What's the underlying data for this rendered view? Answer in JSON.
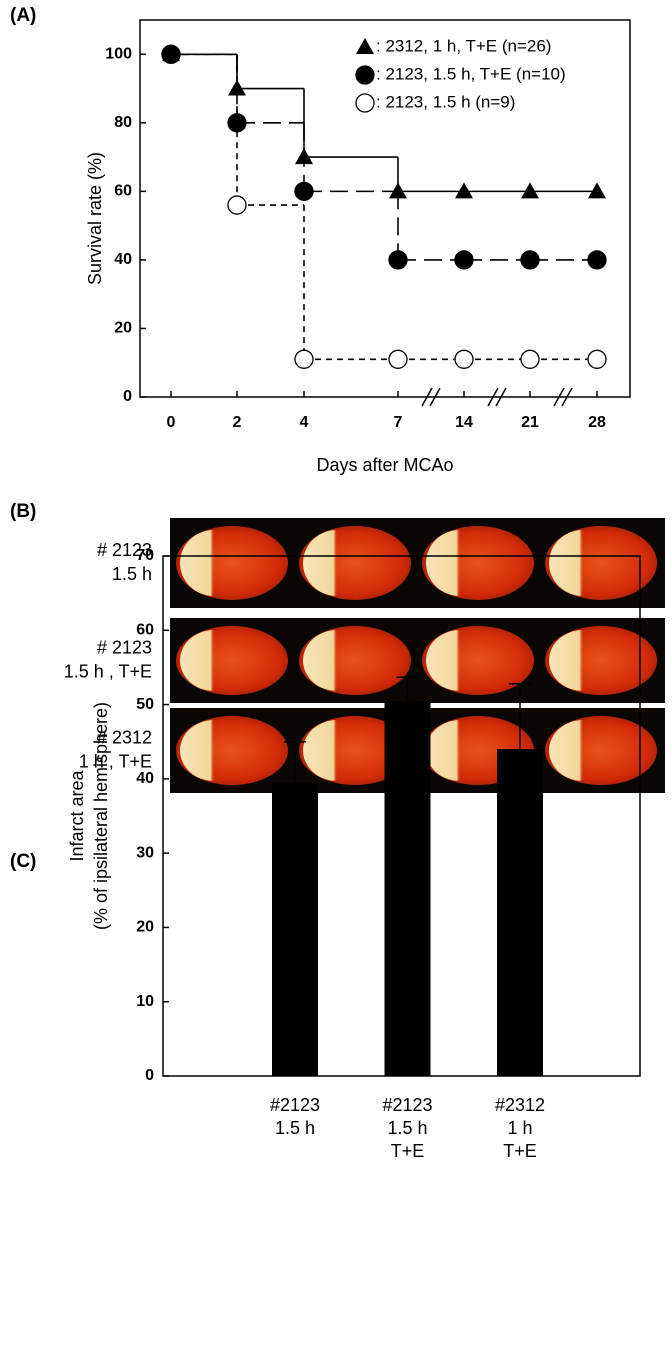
{
  "chart_data": [
    {
      "type": "line",
      "panel": "(A)",
      "xlabel": "Days after MCAo",
      "ylabel": "Survival rate (%)",
      "categories": [
        "0",
        "2",
        "4",
        "7",
        "14",
        "21",
        "28"
      ],
      "ylim": [
        0,
        110
      ],
      "yticks": [
        0,
        20,
        40,
        60,
        80,
        100
      ],
      "series": [
        {
          "name": ": 2312, 1 h, T+E (n=26)",
          "color": "#000000",
          "marker": "triangle",
          "line_style": "solid",
          "values": [
            100,
            90,
            70,
            60,
            60,
            60,
            60
          ]
        },
        {
          "name": ": 2123, 1.5 h, T+E (n=10)",
          "color": "#000000",
          "marker": "circle",
          "line_style": "dashed",
          "values": [
            100,
            80,
            60,
            40,
            40,
            40,
            40
          ]
        },
        {
          "name": ": 2123, 1.5 h (n=9)",
          "color": "#000000",
          "marker": "open-circle",
          "line_style": "dotted",
          "values": [
            100,
            56,
            11,
            11,
            11,
            11,
            11
          ]
        }
      ]
    },
    {
      "type": "bar",
      "panel": "(C)",
      "ylabel": [
        "Infarct area",
        "(% of ipsilateral hemisphere)"
      ],
      "categories": [
        [
          "#2123",
          "1.5 h"
        ],
        [
          "#2123",
          "1.5 h",
          "T+E"
        ],
        [
          "#2312",
          "1 h",
          "T+E"
        ]
      ],
      "values": [
        39.5,
        50.5,
        44
      ],
      "errors": [
        5.5,
        3.2,
        8.8
      ],
      "color": "#000000",
      "ylim": [
        0,
        70
      ],
      "yticks": [
        0,
        10,
        20,
        30,
        40,
        50,
        60,
        70
      ]
    }
  ],
  "panel_b": {
    "label": "(B)",
    "rows": [
      [
        "# 2123",
        "1.5 h"
      ],
      [
        "# 2123",
        "1.5 h , T+E"
      ],
      [
        "# 2312",
        "1 h , T+E"
      ]
    ]
  }
}
